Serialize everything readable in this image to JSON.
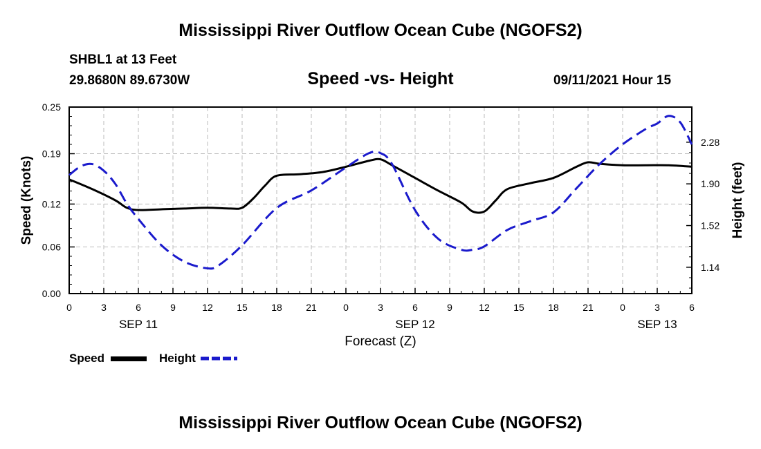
{
  "title": "Mississippi River Outflow Ocean Cube (NGOFS2)",
  "station": "SHBL1 at 13 Feet",
  "coordinates": "29.8680N  89.6730W",
  "subtitle": "Speed -vs- Height",
  "datetime": "09/11/2021 Hour 15",
  "legend": {
    "speed_label": "Speed",
    "height_label": "Height"
  },
  "colors": {
    "speed": "#000000",
    "height": "#1a1acc",
    "grid": "#bbbbbb"
  },
  "chart_data": {
    "type": "line",
    "title": "Speed -vs- Height",
    "xlabel": "Forecast (Z)",
    "ylabel": "Speed (Knots)",
    "y2label": "Height (feet)",
    "x_ticks": [
      "0",
      "3",
      "6",
      "9",
      "12",
      "15",
      "18",
      "21",
      "0",
      "3",
      "6",
      "9",
      "12",
      "15",
      "18",
      "21",
      "0",
      "3",
      "6"
    ],
    "date_labels": [
      {
        "label": "SEP 11",
        "at_hour": 6
      },
      {
        "label": "SEP 12",
        "at_hour": 30
      },
      {
        "label": "SEP 13",
        "at_hour": 51
      }
    ],
    "xlim": [
      0,
      54
    ],
    "ylim": [
      0,
      0.25
    ],
    "y_ticks": [
      "0.00",
      "0.06",
      "0.12",
      "0.19",
      "0.25"
    ],
    "y2lim": [
      0.9,
      2.6
    ],
    "y2_ticks": [
      "1.14",
      "1.52",
      "1.90",
      "2.28"
    ],
    "series": [
      {
        "name": "Speed",
        "axis": "left",
        "style": "solid",
        "x": [
          0,
          2,
          4,
          5,
          6,
          8,
          10,
          12,
          14,
          15,
          16,
          17,
          18,
          20,
          22,
          24,
          26,
          27,
          28,
          30,
          32,
          34,
          35,
          36,
          37,
          38,
          40,
          42,
          44,
          45,
          46,
          48,
          50,
          52,
          54
        ],
        "values": [
          0.153,
          0.14,
          0.125,
          0.115,
          0.112,
          0.113,
          0.114,
          0.115,
          0.114,
          0.115,
          0.128,
          0.145,
          0.158,
          0.16,
          0.163,
          0.17,
          0.178,
          0.18,
          0.172,
          0.155,
          0.138,
          0.122,
          0.11,
          0.11,
          0.125,
          0.14,
          0.148,
          0.155,
          0.17,
          0.176,
          0.174,
          0.172,
          0.172,
          0.172,
          0.17
        ]
      },
      {
        "name": "Height",
        "axis": "right",
        "style": "dashed",
        "x": [
          0,
          1,
          2,
          3,
          4,
          5,
          6,
          8,
          10,
          12,
          13,
          15,
          18,
          21,
          24,
          26,
          27,
          28,
          30,
          32,
          34,
          35,
          36,
          38,
          40,
          42,
          44,
          46,
          48,
          50,
          51,
          52,
          53,
          54
        ],
        "values": [
          1.98,
          2.06,
          2.08,
          2.02,
          1.9,
          1.72,
          1.58,
          1.34,
          1.19,
          1.13,
          1.16,
          1.34,
          1.68,
          1.84,
          2.05,
          2.18,
          2.18,
          2.08,
          1.66,
          1.4,
          1.3,
          1.3,
          1.33,
          1.48,
          1.56,
          1.64,
          1.86,
          2.08,
          2.26,
          2.4,
          2.45,
          2.52,
          2.46,
          2.26
        ]
      }
    ]
  }
}
